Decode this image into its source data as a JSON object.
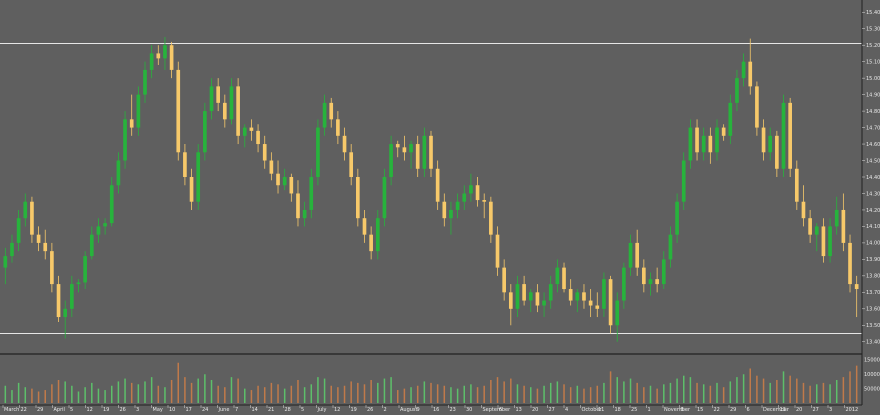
{
  "chart_data": {
    "type": "candlestick",
    "title": "",
    "xlabel": "",
    "ylabel": "",
    "ylim": [
      13.35,
      15.45
    ],
    "volume_ylim": [
      0,
      160000
    ],
    "grid": false,
    "legend": "none",
    "colors": {
      "background": "#5f5f5f",
      "up": "#27b33c",
      "down": "#f7c96a",
      "volume_up": "#5dbf6a",
      "volume_down": "#c07a4a",
      "level_line": "#e6e6e6",
      "divider": "#111111"
    },
    "horizontal_levels": [
      15.21,
      13.45
    ],
    "y_ticks": [
      "15.40",
      "15.30",
      "15.20",
      "15.10",
      "15.00",
      "14.90",
      "14.80",
      "14.70",
      "14.60",
      "14.50",
      "14.40",
      "14.30",
      "14.20",
      "14.10",
      "14.00",
      "13.90",
      "13.80",
      "13.70",
      "13.60",
      "13.50",
      "13.40"
    ],
    "volume_ticks": [
      "150000",
      "100000",
      "50000"
    ],
    "x_ticks": [
      "March",
      "22",
      "29",
      "April",
      "5",
      "12",
      "19",
      "26",
      "3",
      "May",
      "10",
      "17",
      "24",
      "June",
      "7",
      "14",
      "21",
      "28",
      "5",
      "July",
      "12",
      "19",
      "26",
      "2",
      "August",
      "9",
      "16",
      "23",
      "30",
      "September",
      "6",
      "13",
      "20",
      "27",
      "4",
      "October",
      "11",
      "18",
      "25",
      "1",
      "November",
      "8",
      "15",
      "22",
      "29",
      "6",
      "December",
      "13",
      "20",
      "27",
      "3",
      "2012"
    ],
    "candles": [
      {
        "o": 13.85,
        "h": 13.97,
        "l": 13.75,
        "c": 13.92
      },
      {
        "o": 13.92,
        "h": 14.05,
        "l": 13.88,
        "c": 14.0
      },
      {
        "o": 14.0,
        "h": 14.2,
        "l": 13.95,
        "c": 14.15
      },
      {
        "o": 14.15,
        "h": 14.3,
        "l": 14.1,
        "c": 14.25
      },
      {
        "o": 14.25,
        "h": 14.28,
        "l": 14.0,
        "c": 14.05
      },
      {
        "o": 14.05,
        "h": 14.1,
        "l": 13.95,
        "c": 14.0
      },
      {
        "o": 14.0,
        "h": 14.08,
        "l": 13.9,
        "c": 13.95
      },
      {
        "o": 13.95,
        "h": 14.0,
        "l": 13.7,
        "c": 13.75
      },
      {
        "o": 13.75,
        "h": 13.8,
        "l": 13.52,
        "c": 13.55
      },
      {
        "o": 13.55,
        "h": 13.65,
        "l": 13.42,
        "c": 13.6
      },
      {
        "o": 13.6,
        "h": 13.8,
        "l": 13.55,
        "c": 13.75
      },
      {
        "o": 13.75,
        "h": 13.78,
        "l": 13.7,
        "c": 13.76
      },
      {
        "o": 13.76,
        "h": 13.95,
        "l": 13.72,
        "c": 13.92
      },
      {
        "o": 13.92,
        "h": 14.1,
        "l": 13.9,
        "c": 14.05
      },
      {
        "o": 14.05,
        "h": 14.15,
        "l": 14.0,
        "c": 14.1
      },
      {
        "o": 14.1,
        "h": 14.15,
        "l": 14.05,
        "c": 14.12
      },
      {
        "o": 14.12,
        "h": 14.4,
        "l": 14.1,
        "c": 14.35
      },
      {
        "o": 14.35,
        "h": 14.55,
        "l": 14.3,
        "c": 14.5
      },
      {
        "o": 14.5,
        "h": 14.8,
        "l": 14.45,
        "c": 14.75
      },
      {
        "o": 14.75,
        "h": 14.9,
        "l": 14.65,
        "c": 14.7
      },
      {
        "o": 14.7,
        "h": 14.95,
        "l": 14.65,
        "c": 14.9
      },
      {
        "o": 14.9,
        "h": 15.1,
        "l": 14.85,
        "c": 15.05
      },
      {
        "o": 15.05,
        "h": 15.2,
        "l": 15.0,
        "c": 15.15
      },
      {
        "o": 15.15,
        "h": 15.2,
        "l": 15.08,
        "c": 15.12
      },
      {
        "o": 15.12,
        "h": 15.25,
        "l": 15.05,
        "c": 15.2
      },
      {
        "o": 15.2,
        "h": 15.22,
        "l": 15.0,
        "c": 15.05
      },
      {
        "o": 15.05,
        "h": 15.1,
        "l": 14.5,
        "c": 14.55
      },
      {
        "o": 14.55,
        "h": 14.6,
        "l": 14.35,
        "c": 14.4
      },
      {
        "o": 14.4,
        "h": 14.45,
        "l": 14.2,
        "c": 14.25
      },
      {
        "o": 14.25,
        "h": 14.6,
        "l": 14.2,
        "c": 14.55
      },
      {
        "o": 14.55,
        "h": 14.85,
        "l": 14.5,
        "c": 14.8
      },
      {
        "o": 14.8,
        "h": 15.0,
        "l": 14.75,
        "c": 14.95
      },
      {
        "o": 14.95,
        "h": 15.0,
        "l": 14.8,
        "c": 14.85
      },
      {
        "o": 14.85,
        "h": 14.9,
        "l": 14.7,
        "c": 14.75
      },
      {
        "o": 14.75,
        "h": 15.0,
        "l": 14.72,
        "c": 14.95
      },
      {
        "o": 14.95,
        "h": 15.0,
        "l": 14.6,
        "c": 14.65
      },
      {
        "o": 14.65,
        "h": 14.72,
        "l": 14.58,
        "c": 14.7
      },
      {
        "o": 14.7,
        "h": 14.75,
        "l": 14.62,
        "c": 14.68
      },
      {
        "o": 14.68,
        "h": 14.72,
        "l": 14.55,
        "c": 14.6
      },
      {
        "o": 14.6,
        "h": 14.65,
        "l": 14.45,
        "c": 14.5
      },
      {
        "o": 14.5,
        "h": 14.55,
        "l": 14.38,
        "c": 14.42
      },
      {
        "o": 14.42,
        "h": 14.5,
        "l": 14.3,
        "c": 14.35
      },
      {
        "o": 14.35,
        "h": 14.45,
        "l": 14.32,
        "c": 14.4
      },
      {
        "o": 14.4,
        "h": 14.42,
        "l": 14.25,
        "c": 14.3
      },
      {
        "o": 14.3,
        "h": 14.38,
        "l": 14.1,
        "c": 14.15
      },
      {
        "o": 14.15,
        "h": 14.25,
        "l": 14.1,
        "c": 14.2
      },
      {
        "o": 14.2,
        "h": 14.45,
        "l": 14.15,
        "c": 14.4
      },
      {
        "o": 14.4,
        "h": 14.75,
        "l": 14.35,
        "c": 14.7
      },
      {
        "o": 14.7,
        "h": 14.9,
        "l": 14.65,
        "c": 14.85
      },
      {
        "o": 14.85,
        "h": 14.88,
        "l": 14.7,
        "c": 14.75
      },
      {
        "o": 14.75,
        "h": 14.8,
        "l": 14.6,
        "c": 14.65
      },
      {
        "o": 14.65,
        "h": 14.7,
        "l": 14.5,
        "c": 14.55
      },
      {
        "o": 14.55,
        "h": 14.6,
        "l": 14.35,
        "c": 14.4
      },
      {
        "o": 14.4,
        "h": 14.45,
        "l": 14.1,
        "c": 14.15
      },
      {
        "o": 14.15,
        "h": 14.2,
        "l": 14.0,
        "c": 14.05
      },
      {
        "o": 14.05,
        "h": 14.1,
        "l": 13.9,
        "c": 13.95
      },
      {
        "o": 13.95,
        "h": 14.2,
        "l": 13.9,
        "c": 14.15
      },
      {
        "o": 14.15,
        "h": 14.45,
        "l": 14.1,
        "c": 14.4
      },
      {
        "o": 14.4,
        "h": 14.65,
        "l": 14.35,
        "c": 14.6
      },
      {
        "o": 14.6,
        "h": 14.62,
        "l": 14.52,
        "c": 14.58
      },
      {
        "o": 14.58,
        "h": 14.65,
        "l": 14.5,
        "c": 14.55
      },
      {
        "o": 14.55,
        "h": 14.62,
        "l": 14.45,
        "c": 14.6
      },
      {
        "o": 14.6,
        "h": 14.65,
        "l": 14.4,
        "c": 14.45
      },
      {
        "o": 14.45,
        "h": 14.7,
        "l": 14.4,
        "c": 14.65
      },
      {
        "o": 14.65,
        "h": 14.68,
        "l": 14.4,
        "c": 14.45
      },
      {
        "o": 14.45,
        "h": 14.5,
        "l": 14.2,
        "c": 14.25
      },
      {
        "o": 14.25,
        "h": 14.3,
        "l": 14.1,
        "c": 14.15
      },
      {
        "o": 14.15,
        "h": 14.25,
        "l": 14.05,
        "c": 14.2
      },
      {
        "o": 14.2,
        "h": 14.3,
        "l": 14.15,
        "c": 14.25
      },
      {
        "o": 14.25,
        "h": 14.35,
        "l": 14.2,
        "c": 14.3
      },
      {
        "o": 14.3,
        "h": 14.42,
        "l": 14.25,
        "c": 14.35
      },
      {
        "o": 14.35,
        "h": 14.4,
        "l": 14.22,
        "c": 14.26
      },
      {
        "o": 14.26,
        "h": 14.3,
        "l": 14.15,
        "c": 14.25
      },
      {
        "o": 14.25,
        "h": 14.28,
        "l": 14.0,
        "c": 14.05
      },
      {
        "o": 14.05,
        "h": 14.1,
        "l": 13.8,
        "c": 13.85
      },
      {
        "o": 13.85,
        "h": 13.9,
        "l": 13.65,
        "c": 13.7
      },
      {
        "o": 13.7,
        "h": 13.75,
        "l": 13.5,
        "c": 13.6
      },
      {
        "o": 13.6,
        "h": 13.8,
        "l": 13.55,
        "c": 13.75
      },
      {
        "o": 13.75,
        "h": 13.8,
        "l": 13.62,
        "c": 13.65
      },
      {
        "o": 13.65,
        "h": 13.72,
        "l": 13.58,
        "c": 13.7
      },
      {
        "o": 13.7,
        "h": 13.75,
        "l": 13.58,
        "c": 13.62
      },
      {
        "o": 13.62,
        "h": 13.7,
        "l": 13.55,
        "c": 13.65
      },
      {
        "o": 13.65,
        "h": 13.8,
        "l": 13.6,
        "c": 13.75
      },
      {
        "o": 13.75,
        "h": 13.9,
        "l": 13.7,
        "c": 13.85
      },
      {
        "o": 13.85,
        "h": 13.88,
        "l": 13.7,
        "c": 13.72
      },
      {
        "o": 13.72,
        "h": 13.78,
        "l": 13.62,
        "c": 13.65
      },
      {
        "o": 13.65,
        "h": 13.72,
        "l": 13.58,
        "c": 13.7
      },
      {
        "o": 13.7,
        "h": 13.75,
        "l": 13.6,
        "c": 13.65
      },
      {
        "o": 13.65,
        "h": 13.72,
        "l": 13.55,
        "c": 13.62
      },
      {
        "o": 13.62,
        "h": 13.7,
        "l": 13.55,
        "c": 13.6
      },
      {
        "o": 13.6,
        "h": 13.82,
        "l": 13.55,
        "c": 13.78
      },
      {
        "o": 13.78,
        "h": 13.8,
        "l": 13.45,
        "c": 13.5
      },
      {
        "o": 13.5,
        "h": 13.7,
        "l": 13.4,
        "c": 13.65
      },
      {
        "o": 13.65,
        "h": 13.88,
        "l": 13.6,
        "c": 13.85
      },
      {
        "o": 13.85,
        "h": 14.05,
        "l": 13.8,
        "c": 14.0
      },
      {
        "o": 14.0,
        "h": 14.08,
        "l": 13.8,
        "c": 13.85
      },
      {
        "o": 13.85,
        "h": 13.9,
        "l": 13.7,
        "c": 13.75
      },
      {
        "o": 13.75,
        "h": 13.82,
        "l": 13.68,
        "c": 13.78
      },
      {
        "o": 13.78,
        "h": 13.85,
        "l": 13.7,
        "c": 13.75
      },
      {
        "o": 13.75,
        "h": 13.95,
        "l": 13.72,
        "c": 13.9
      },
      {
        "o": 13.9,
        "h": 14.1,
        "l": 13.85,
        "c": 14.05
      },
      {
        "o": 14.05,
        "h": 14.3,
        "l": 14.0,
        "c": 14.25
      },
      {
        "o": 14.25,
        "h": 14.55,
        "l": 14.2,
        "c": 14.5
      },
      {
        "o": 14.5,
        "h": 14.75,
        "l": 14.45,
        "c": 14.7
      },
      {
        "o": 14.7,
        "h": 14.75,
        "l": 14.5,
        "c": 14.55
      },
      {
        "o": 14.55,
        "h": 14.7,
        "l": 14.5,
        "c": 14.65
      },
      {
        "o": 14.65,
        "h": 14.7,
        "l": 14.48,
        "c": 14.55
      },
      {
        "o": 14.55,
        "h": 14.75,
        "l": 14.5,
        "c": 14.7
      },
      {
        "o": 14.7,
        "h": 14.72,
        "l": 14.62,
        "c": 14.65
      },
      {
        "o": 14.65,
        "h": 14.9,
        "l": 14.6,
        "c": 14.85
      },
      {
        "o": 14.85,
        "h": 15.05,
        "l": 14.8,
        "c": 15.0
      },
      {
        "o": 15.0,
        "h": 15.15,
        "l": 14.95,
        "c": 15.1
      },
      {
        "o": 15.1,
        "h": 15.24,
        "l": 14.9,
        "c": 14.95
      },
      {
        "o": 14.95,
        "h": 14.98,
        "l": 14.65,
        "c": 14.7
      },
      {
        "o": 14.7,
        "h": 14.75,
        "l": 14.5,
        "c": 14.55
      },
      {
        "o": 14.55,
        "h": 14.7,
        "l": 14.5,
        "c": 14.65
      },
      {
        "o": 14.65,
        "h": 14.68,
        "l": 14.4,
        "c": 14.45
      },
      {
        "o": 14.45,
        "h": 14.9,
        "l": 14.4,
        "c": 14.85
      },
      {
        "o": 14.85,
        "h": 14.88,
        "l": 14.4,
        "c": 14.45
      },
      {
        "o": 14.45,
        "h": 14.5,
        "l": 14.2,
        "c": 14.25
      },
      {
        "o": 14.25,
        "h": 14.35,
        "l": 14.1,
        "c": 14.15
      },
      {
        "o": 14.15,
        "h": 14.2,
        "l": 14.0,
        "c": 14.05
      },
      {
        "o": 14.05,
        "h": 14.12,
        "l": 13.95,
        "c": 14.1
      },
      {
        "o": 14.1,
        "h": 14.15,
        "l": 13.88,
        "c": 13.92
      },
      {
        "o": 13.92,
        "h": 14.15,
        "l": 13.88,
        "c": 14.1
      },
      {
        "o": 14.1,
        "h": 14.28,
        "l": 14.05,
        "c": 14.2
      },
      {
        "o": 14.2,
        "h": 14.3,
        "l": 13.95,
        "c": 14.0
      },
      {
        "o": 14.0,
        "h": 14.05,
        "l": 13.7,
        "c": 13.75
      },
      {
        "o": 13.75,
        "h": 13.8,
        "l": 13.55,
        "c": 13.72
      }
    ],
    "volumes": [
      60000,
      45000,
      70000,
      55000,
      50000,
      40000,
      45000,
      65000,
      80000,
      75000,
      60000,
      40000,
      55000,
      70000,
      50000,
      45000,
      60000,
      75000,
      85000,
      70000,
      65000,
      75000,
      90000,
      60000,
      55000,
      80000,
      140000,
      90000,
      70000,
      85000,
      100000,
      80000,
      60000,
      55000,
      90000,
      85000,
      50000,
      45000,
      60000,
      55000,
      70000,
      65000,
      50000,
      60000,
      80000,
      55000,
      65000,
      90000,
      85000,
      60000,
      55000,
      60000,
      75000,
      70000,
      65000,
      80000,
      70000,
      85000,
      90000,
      45000,
      50000,
      55000,
      60000,
      75000,
      70000,
      65000,
      60000,
      55000,
      50000,
      60000,
      65000,
      55000,
      60000,
      80000,
      90000,
      75000,
      85000,
      65000,
      60000,
      55000,
      50000,
      60000,
      70000,
      75000,
      65000,
      55000,
      60000,
      50000,
      55000,
      60000,
      70000,
      110000,
      90000,
      75000,
      85000,
      70000,
      55000,
      60000,
      50000,
      65000,
      70000,
      85000,
      95000,
      90000,
      70000,
      65000,
      60000,
      70000,
      55000,
      75000,
      90000,
      100000,
      120000,
      95000,
      85000,
      70000,
      80000,
      110000,
      95000,
      85000,
      70000,
      60000,
      65000,
      70000,
      65000,
      80000,
      90000,
      110000,
      130000,
      100000
    ]
  }
}
